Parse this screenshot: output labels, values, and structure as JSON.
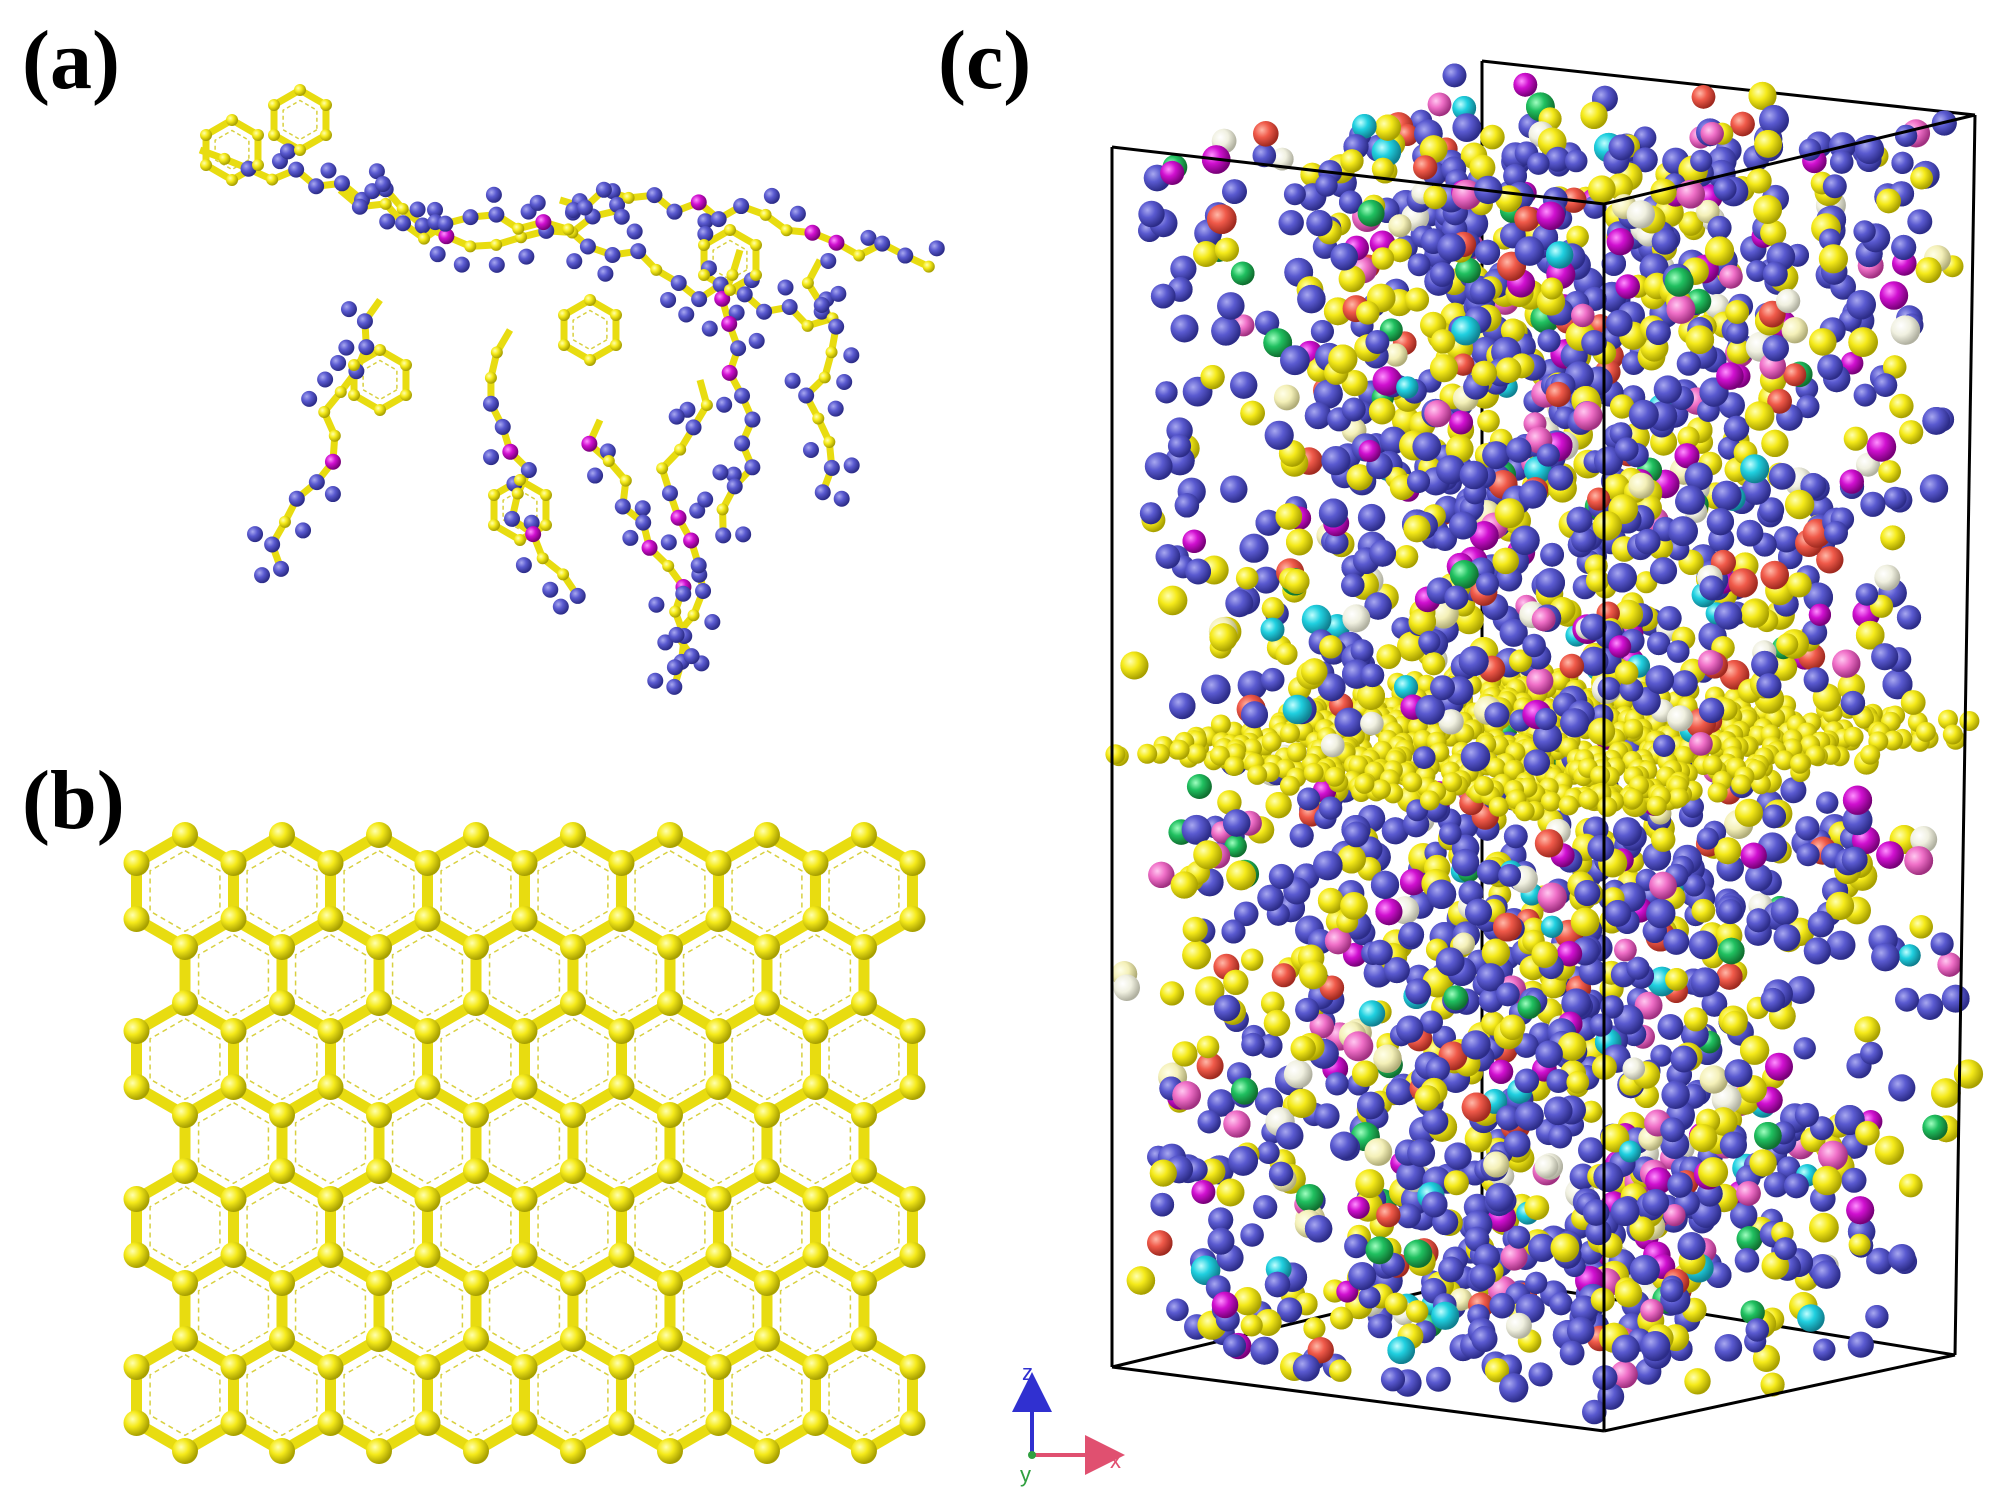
{
  "panels": [
    {
      "label": "(a)"
    },
    {
      "label": "(b)"
    },
    {
      "label": "(c)"
    }
  ],
  "axes": {
    "z": "z",
    "x": "x",
    "y": "y"
  }
}
